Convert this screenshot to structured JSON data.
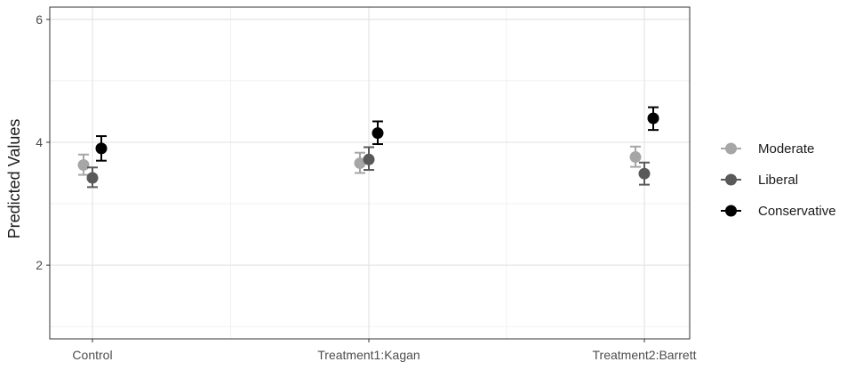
{
  "chart_data": {
    "type": "scatter",
    "subtype": "point-with-errorbars",
    "ylabel": "Predicted Values",
    "xlabel": "",
    "categories": [
      "Control",
      "Treatment1:Kagan",
      "Treatment2:Barrett"
    ],
    "yticks": [
      2,
      4,
      6
    ],
    "ytick_labels": [
      "2",
      "4",
      "6"
    ],
    "ylim": [
      0.8,
      6.2
    ],
    "grid": true,
    "legend_position": "right",
    "series": [
      {
        "name": "Moderate",
        "color": "#a6a6a6",
        "values": [
          3.63,
          3.66,
          3.76
        ],
        "lower": [
          3.47,
          3.5,
          3.6
        ],
        "upper": [
          3.8,
          3.83,
          3.93
        ]
      },
      {
        "name": "Liberal",
        "color": "#595959",
        "values": [
          3.42,
          3.72,
          3.49
        ],
        "lower": [
          3.27,
          3.55,
          3.31
        ],
        "upper": [
          3.59,
          3.92,
          3.67
        ]
      },
      {
        "name": "Conservative",
        "color": "#000000",
        "values": [
          3.9,
          4.15,
          4.39
        ],
        "lower": [
          3.7,
          3.97,
          4.2
        ],
        "upper": [
          4.1,
          4.34,
          4.57
        ]
      }
    ]
  }
}
